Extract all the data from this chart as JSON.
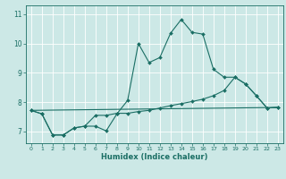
{
  "xlabel": "Humidex (Indice chaleur)",
  "xlim": [
    -0.5,
    23.5
  ],
  "ylim": [
    6.6,
    11.3
  ],
  "yticks": [
    7,
    8,
    9,
    10,
    11
  ],
  "xticks": [
    0,
    1,
    2,
    3,
    4,
    5,
    6,
    7,
    8,
    9,
    10,
    11,
    12,
    13,
    14,
    15,
    16,
    17,
    18,
    19,
    20,
    21,
    22,
    23
  ],
  "bg_color": "#cce8e6",
  "grid_color": "#ffffff",
  "line_color": "#1a6e64",
  "line1_x": [
    0,
    1,
    2,
    3,
    4,
    5,
    6,
    7,
    8,
    9,
    10,
    11,
    12,
    13,
    14,
    15,
    16,
    17,
    18,
    19,
    20,
    21,
    22,
    23
  ],
  "line1_y": [
    7.72,
    7.6,
    6.88,
    6.88,
    7.12,
    7.18,
    7.18,
    7.02,
    7.6,
    8.06,
    10.0,
    9.35,
    9.52,
    10.35,
    10.82,
    10.38,
    10.32,
    9.12,
    8.85,
    8.85,
    8.62,
    8.22,
    7.8,
    7.82
  ],
  "line2_x": [
    0,
    1,
    2,
    3,
    4,
    5,
    6,
    7,
    8,
    9,
    10,
    11,
    12,
    13,
    14,
    15,
    16,
    17,
    18,
    19,
    20,
    21,
    22,
    23
  ],
  "line2_y": [
    7.72,
    7.6,
    6.88,
    6.88,
    7.12,
    7.18,
    7.55,
    7.55,
    7.62,
    7.62,
    7.68,
    7.72,
    7.8,
    7.88,
    7.95,
    8.02,
    8.1,
    8.22,
    8.4,
    8.85,
    8.62,
    8.22,
    7.8,
    7.82
  ],
  "line3_x": [
    0,
    23
  ],
  "line3_y": [
    7.72,
    7.82
  ],
  "marker": "D",
  "markersize": 2.0
}
